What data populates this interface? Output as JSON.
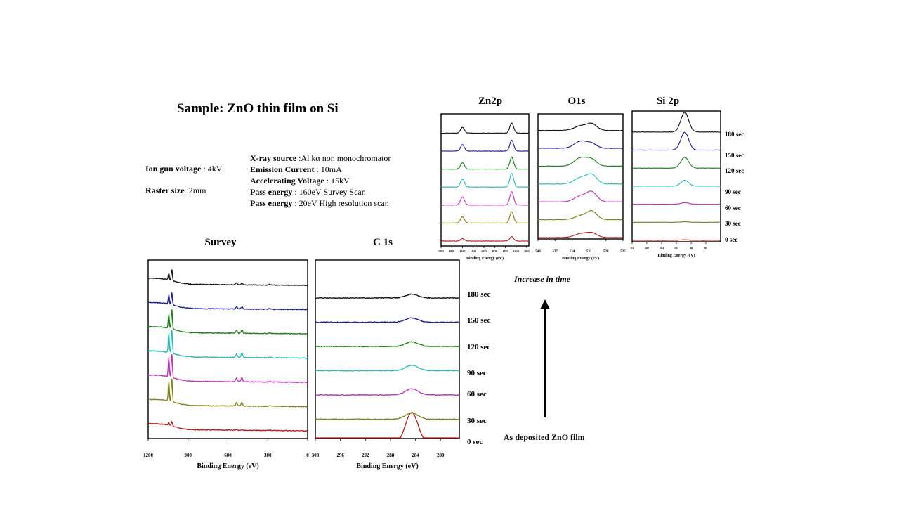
{
  "slide": {
    "title": "Sample: ZnO thin film on Si",
    "ion_gun_voltage": {
      "label": "Ion gun voltage",
      "value": " : 4kV"
    },
    "raster_size": {
      "label": "Raster size",
      "value": " :2mm"
    },
    "xray_source": {
      "label": "X-ray source",
      "value": " :Al kα non monochromator"
    },
    "emission_current": {
      "label": "Emission Current",
      "value": " : 10mA"
    },
    "accelerating_voltage": {
      "label": "Accelerating Voltage",
      "value": " : 15kV"
    },
    "pass_energy_survey": {
      "label": "Pass energy",
      "value": " : 160eV Survey Scan"
    },
    "pass_energy_hr": {
      "label": "Pass energy",
      "value": " : 20eV High resolution scan"
    },
    "increase_label": "Increase in time",
    "as_deposited_label": "As deposited ZnO film",
    "time_labels": [
      "180 sec",
      "150 sec",
      "120 sec",
      "90 sec",
      "60 sec",
      "30 sec",
      "0 sec"
    ],
    "series_colors": [
      "#b01c1c",
      "#7f7f1a",
      "#b832b8",
      "#2ab8b8",
      "#1c7a1c",
      "#1c1c8c",
      "#111111"
    ]
  },
  "chart_data": [
    {
      "id": "survey",
      "type": "line",
      "title": "Survey",
      "xlabel": "Binding Energy (eV)",
      "ylabel": "",
      "xlim": [
        1200,
        0
      ],
      "x_reversed": true,
      "xticks": [
        "1200",
        "900",
        "600",
        "300",
        "0"
      ],
      "series_names": [
        "0 sec",
        "30 sec",
        "60 sec",
        "90 sec",
        "120 sec",
        "150 sec",
        "180 sec"
      ],
      "peaks": [
        {
          "x": [
            1045,
            1022,
            535,
            495,
            285,
            140
          ],
          "heights": [
            0.1,
            0.18,
            0.03,
            0.03,
            0.01,
            0.0
          ]
        },
        {
          "x": [
            1045,
            1022,
            535,
            495,
            285,
            140
          ],
          "heights": [
            0.75,
            0.95,
            0.12,
            0.14,
            0.02,
            0.0
          ]
        },
        {
          "x": [
            1045,
            1022,
            535,
            495,
            285,
            140
          ],
          "heights": [
            0.75,
            0.95,
            0.14,
            0.16,
            0.02,
            0.0
          ]
        },
        {
          "x": [
            1045,
            1022,
            535,
            495,
            285,
            140
          ],
          "heights": [
            0.75,
            0.95,
            0.14,
            0.18,
            0.02,
            0.0
          ]
        },
        {
          "x": [
            1045,
            1022,
            535,
            495,
            285,
            140
          ],
          "heights": [
            0.55,
            0.8,
            0.1,
            0.12,
            0.02,
            0.0
          ]
        },
        {
          "x": [
            1045,
            1022,
            535,
            495,
            285,
            140
          ],
          "heights": [
            0.35,
            0.5,
            0.08,
            0.08,
            0.02,
            0.0
          ]
        },
        {
          "x": [
            1045,
            1022,
            535,
            495,
            285,
            140
          ],
          "heights": [
            0.25,
            0.45,
            0.07,
            0.07,
            0.02,
            0.0
          ]
        }
      ]
    },
    {
      "id": "c1s",
      "type": "line",
      "title": "C 1s",
      "xlabel": "Binding Energy (eV)",
      "ylabel": "",
      "xlim": [
        300,
        277
      ],
      "x_reversed": true,
      "xticks": [
        "300",
        "296",
        "292",
        "288",
        "284",
        "280"
      ],
      "series_names": [
        "0 sec",
        "30 sec",
        "60 sec",
        "90 sec",
        "120 sec",
        "150 sec",
        "180 sec"
      ],
      "peak_center": 284.6,
      "peak_heights": [
        1.0,
        0.2,
        0.2,
        0.18,
        0.15,
        0.14,
        0.12
      ]
    },
    {
      "id": "zn2p",
      "type": "line",
      "title": "Zn2p",
      "xlabel": "Binding Energy (eV)",
      "ylabel": "",
      "xlim": [
        1055,
        1014
      ],
      "x_reversed": true,
      "xticks": [
        "1055",
        "1050",
        "1045",
        "1040",
        "1035",
        "1030",
        "1025",
        "1020",
        "1015"
      ],
      "series_names": [
        "0 sec",
        "30 sec",
        "60 sec",
        "90 sec",
        "120 sec",
        "150 sec",
        "180 sec"
      ],
      "peaks_x": [
        1045,
        1022
      ],
      "peak_heights": [
        [
          0.2,
          0.35
        ],
        [
          0.5,
          0.9
        ],
        [
          0.65,
          1.05
        ],
        [
          0.65,
          1.1
        ],
        [
          0.5,
          0.95
        ],
        [
          0.5,
          0.85
        ],
        [
          0.45,
          0.8
        ]
      ]
    },
    {
      "id": "o1s",
      "type": "line",
      "title": "O1s",
      "xlabel": "Binding Energy (eV)",
      "ylabel": "",
      "xlim": [
        540,
        525
      ],
      "x_reversed": true,
      "xticks": [
        "540",
        "537",
        "534",
        "531",
        "528",
        "525"
      ],
      "series_names": [
        "0 sec",
        "30 sec",
        "60 sec",
        "90 sec",
        "120 sec",
        "150 sec",
        "180 sec"
      ],
      "peaks_x": [
        532.5,
        530.5
      ],
      "peak_heights": [
        [
          0.3,
          0.35
        ],
        [
          0.3,
          0.65
        ],
        [
          0.45,
          0.75
        ],
        [
          0.5,
          0.7
        ],
        [
          0.65,
          0.5
        ],
        [
          0.55,
          0.35
        ],
        [
          0.35,
          0.5
        ]
      ]
    },
    {
      "id": "si2p",
      "type": "line",
      "title": "Si 2p",
      "xlabel": "Binding Energy (eV)",
      "ylabel": "",
      "xlim": [
        110,
        92
      ],
      "x_reversed": true,
      "xticks": [
        "110",
        "107",
        "104",
        "101",
        "98",
        "95"
      ],
      "series_names": [
        "0 sec",
        "30 sec",
        "60 sec",
        "90 sec",
        "120 sec",
        "150 sec",
        "180 sec"
      ],
      "peak_center": 99.3,
      "peak_heights": [
        0.03,
        0.03,
        0.08,
        0.3,
        0.55,
        0.9,
        1.0
      ]
    }
  ]
}
